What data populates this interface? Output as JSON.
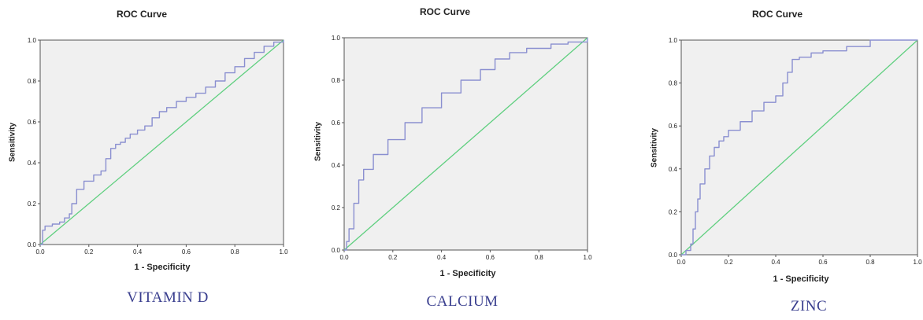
{
  "colors": {
    "roc": "#8a8fd0",
    "reference": "#5fcf7f",
    "plot_bg": "#f0f0f0",
    "caption": "#3a3f8f"
  },
  "chart_data": [
    {
      "type": "line",
      "title": "ROC Curve",
      "xlabel": "1 - Specificity",
      "ylabel": "Sensitivity",
      "caption": "VITAMIN D",
      "xlim": [
        0,
        1
      ],
      "ylim": [
        0,
        1
      ],
      "xticks": [
        "0.0",
        "0.2",
        "0.4",
        "0.6",
        "0.8",
        "1.0"
      ],
      "yticks": [
        "0.0",
        "0.2",
        "0.4",
        "0.6",
        "0.8",
        "1.0"
      ],
      "grid": false,
      "series": [
        {
          "x": [
            0,
            0.01,
            0.02,
            0.05,
            0.08,
            0.1,
            0.12,
            0.13,
            0.15,
            0.18,
            0.22,
            0.25,
            0.27,
            0.29,
            0.31,
            0.33,
            0.35,
            0.37,
            0.4,
            0.43,
            0.46,
            0.49,
            0.52,
            0.56,
            0.6,
            0.64,
            0.68,
            0.72,
            0.76,
            0.8,
            0.84,
            0.88,
            0.92,
            0.96,
            1.0
          ],
          "y": [
            0,
            0.07,
            0.09,
            0.1,
            0.11,
            0.13,
            0.15,
            0.2,
            0.27,
            0.31,
            0.34,
            0.36,
            0.42,
            0.47,
            0.49,
            0.5,
            0.52,
            0.54,
            0.56,
            0.58,
            0.62,
            0.65,
            0.67,
            0.7,
            0.72,
            0.74,
            0.77,
            0.8,
            0.84,
            0.87,
            0.91,
            0.94,
            0.97,
            0.99,
            1.0
          ]
        },
        {
          "x": [
            0,
            1
          ],
          "y": [
            0,
            1
          ]
        }
      ]
    },
    {
      "type": "line",
      "title": "ROC Curve",
      "xlabel": "1 - Specificity",
      "ylabel": "Sensitivity",
      "caption": "CALCIUM",
      "xlim": [
        0,
        1
      ],
      "ylim": [
        0,
        1
      ],
      "xticks": [
        "0.0",
        "0.2",
        "0.4",
        "0.6",
        "0.8",
        "1.0"
      ],
      "yticks": [
        "0.0",
        "0.2",
        "0.4",
        "0.6",
        "0.8",
        "1.0"
      ],
      "grid": false,
      "series": [
        {
          "x": [
            0,
            0.01,
            0.02,
            0.04,
            0.06,
            0.08,
            0.12,
            0.18,
            0.25,
            0.32,
            0.4,
            0.48,
            0.56,
            0.62,
            0.68,
            0.75,
            0.85,
            0.92,
            1.0
          ],
          "y": [
            0,
            0.04,
            0.1,
            0.22,
            0.33,
            0.38,
            0.45,
            0.52,
            0.6,
            0.67,
            0.74,
            0.8,
            0.85,
            0.9,
            0.93,
            0.95,
            0.97,
            0.98,
            1.0
          ]
        },
        {
          "x": [
            0,
            1
          ],
          "y": [
            0,
            1
          ]
        }
      ]
    },
    {
      "type": "line",
      "title": "ROC Curve",
      "xlabel": "1 - Specificity",
      "ylabel": "Sensitivity",
      "caption": "ZINC",
      "xlim": [
        0,
        1
      ],
      "ylim": [
        0,
        1
      ],
      "xticks": [
        "0.0",
        "0.2",
        "0.4",
        "0.6",
        "0.8",
        "1.0"
      ],
      "yticks": [
        "0.0",
        "0.2",
        "0.4",
        "0.6",
        "0.8",
        "1.0"
      ],
      "grid": false,
      "series": [
        {
          "x": [
            0,
            0.02,
            0.04,
            0.05,
            0.06,
            0.07,
            0.08,
            0.1,
            0.12,
            0.14,
            0.16,
            0.18,
            0.2,
            0.25,
            0.3,
            0.35,
            0.4,
            0.43,
            0.45,
            0.47,
            0.5,
            0.55,
            0.6,
            0.7,
            0.8,
            1.0
          ],
          "y": [
            0,
            0.02,
            0.05,
            0.12,
            0.2,
            0.26,
            0.33,
            0.4,
            0.46,
            0.5,
            0.53,
            0.55,
            0.58,
            0.62,
            0.67,
            0.71,
            0.74,
            0.8,
            0.85,
            0.91,
            0.92,
            0.94,
            0.95,
            0.97,
            1.0,
            1.0
          ]
        },
        {
          "x": [
            0,
            1
          ],
          "y": [
            0,
            1
          ]
        }
      ]
    }
  ]
}
